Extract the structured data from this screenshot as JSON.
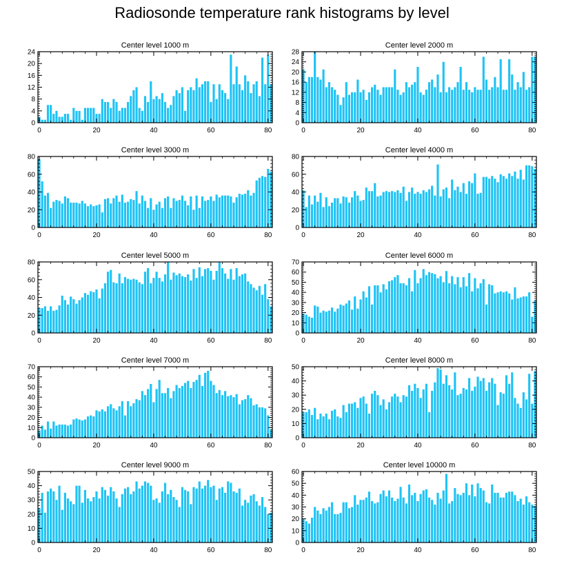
{
  "figure": {
    "title": "Radiosonde temperature rank histograms by level",
    "bar_color": "#1ec3f5"
  },
  "chart_data": [
    {
      "type": "bar",
      "title": "Center level 1000 m",
      "xticks": [
        0,
        20,
        40,
        60,
        80
      ],
      "yticks": [
        0,
        4,
        8,
        12,
        16,
        20,
        24
      ],
      "xlim": [
        -0.5,
        81.5
      ],
      "ylim": [
        0,
        24
      ],
      "values": [
        2,
        1,
        1,
        6,
        6,
        3,
        4,
        2,
        2,
        3,
        3,
        1,
        5,
        4,
        4,
        1,
        5,
        5,
        5,
        5,
        3,
        3,
        8,
        7,
        7,
        5,
        8,
        7,
        4,
        5,
        5,
        7,
        9,
        11,
        12,
        5,
        4,
        9,
        7,
        14,
        8,
        9,
        8,
        10,
        7,
        5,
        6,
        9,
        11,
        10,
        12,
        4,
        11,
        12,
        11,
        15,
        12,
        13,
        14,
        14,
        7,
        13,
        8,
        13,
        11,
        10,
        8,
        23,
        13,
        19,
        13,
        11,
        16,
        14,
        10,
        13,
        14,
        9,
        22,
        13,
        23,
        13
      ]
    },
    {
      "type": "bar",
      "title": "Center level 2000 m",
      "xticks": [
        0,
        20,
        40,
        60,
        80
      ],
      "yticks": [
        0,
        4,
        8,
        12,
        16,
        20,
        24,
        28
      ],
      "xlim": [
        -0.5,
        81.5
      ],
      "ylim": [
        0,
        28
      ],
      "values": [
        21,
        16,
        18,
        18,
        28,
        18,
        17,
        21,
        14,
        16,
        14,
        13,
        11,
        7,
        10,
        16,
        11,
        12,
        12,
        17,
        12,
        13,
        9,
        12,
        14,
        15,
        13,
        11,
        14,
        14,
        14,
        14,
        21,
        13,
        11,
        12,
        16,
        14,
        15,
        16,
        22,
        12,
        11,
        13,
        16,
        17,
        14,
        19,
        12,
        24,
        12,
        14,
        13,
        14,
        16,
        22,
        13,
        16,
        13,
        12,
        14,
        13,
        13,
        26,
        17,
        13,
        14,
        18,
        14,
        25,
        13,
        13,
        25,
        19,
        13,
        16,
        14,
        20,
        13,
        14,
        26,
        26
      ]
    },
    {
      "type": "bar",
      "title": "Center level 3000 m",
      "xticks": [
        0,
        20,
        40,
        60,
        80
      ],
      "yticks": [
        0,
        20,
        40,
        60,
        80
      ],
      "xlim": [
        -0.5,
        81.5
      ],
      "ylim": [
        0,
        80
      ],
      "values": [
        77,
        52,
        36,
        39,
        22,
        29,
        31,
        30,
        27,
        35,
        33,
        28,
        28,
        28,
        27,
        30,
        27,
        24,
        26,
        24,
        25,
        26,
        17,
        32,
        33,
        27,
        33,
        36,
        29,
        37,
        28,
        29,
        32,
        31,
        41,
        27,
        36,
        30,
        22,
        33,
        20,
        26,
        29,
        22,
        33,
        35,
        22,
        33,
        30,
        31,
        36,
        30,
        25,
        35,
        20,
        36,
        22,
        35,
        30,
        31,
        35,
        30,
        37,
        34,
        36,
        36,
        36,
        35,
        28,
        34,
        38,
        37,
        38,
        42,
        36,
        39,
        53,
        56,
        58,
        57,
        66,
        63
      ]
    },
    {
      "type": "bar",
      "title": "Center level 4000 m",
      "xticks": [
        0,
        20,
        40,
        60,
        80
      ],
      "yticks": [
        0,
        20,
        40,
        60,
        80
      ],
      "xlim": [
        -0.5,
        81.5
      ],
      "ylim": [
        0,
        80
      ],
      "values": [
        42,
        23,
        36,
        26,
        36,
        29,
        39,
        23,
        34,
        24,
        28,
        33,
        33,
        27,
        35,
        34,
        28,
        34,
        41,
        36,
        30,
        31,
        45,
        41,
        41,
        50,
        35,
        36,
        40,
        41,
        40,
        41,
        40,
        42,
        39,
        46,
        30,
        40,
        45,
        38,
        40,
        38,
        42,
        40,
        43,
        47,
        36,
        71,
        35,
        43,
        45,
        33,
        54,
        42,
        46,
        40,
        50,
        38,
        52,
        50,
        61,
        38,
        39,
        57,
        57,
        55,
        58,
        55,
        51,
        60,
        58,
        55,
        61,
        58,
        63,
        55,
        65,
        54,
        70,
        70,
        69,
        66
      ]
    },
    {
      "type": "bar",
      "title": "Center level 5000 m",
      "xticks": [
        0,
        20,
        40,
        60,
        80
      ],
      "yticks": [
        0,
        20,
        40,
        60,
        80
      ],
      "xlim": [
        -0.5,
        81.5
      ],
      "ylim": [
        0,
        80
      ],
      "values": [
        28,
        28,
        30,
        25,
        30,
        25,
        26,
        31,
        42,
        37,
        32,
        41,
        38,
        33,
        37,
        40,
        45,
        43,
        47,
        46,
        49,
        39,
        50,
        56,
        69,
        71,
        57,
        56,
        67,
        56,
        63,
        61,
        60,
        61,
        60,
        57,
        55,
        69,
        73,
        56,
        62,
        69,
        62,
        58,
        66,
        83,
        60,
        68,
        65,
        67,
        64,
        63,
        66,
        59,
        72,
        62,
        74,
        64,
        72,
        73,
        70,
        60,
        70,
        80,
        73,
        67,
        61,
        72,
        60,
        73,
        64,
        66,
        67,
        58,
        55,
        51,
        48,
        53,
        43,
        55,
        38,
        30
      ]
    },
    {
      "type": "bar",
      "title": "Center level 6000 m",
      "xticks": [
        0,
        20,
        40,
        60,
        80
      ],
      "yticks": [
        0,
        10,
        20,
        30,
        40,
        50,
        60,
        70
      ],
      "xlim": [
        -0.5,
        81.5
      ],
      "ylim": [
        0,
        70
      ],
      "values": [
        19,
        18,
        16,
        15,
        27,
        26,
        20,
        22,
        21,
        22,
        25,
        21,
        24,
        28,
        27,
        29,
        32,
        23,
        36,
        24,
        33,
        41,
        35,
        46,
        28,
        47,
        47,
        40,
        48,
        43,
        51,
        52,
        55,
        57,
        49,
        49,
        47,
        54,
        41,
        62,
        49,
        54,
        63,
        57,
        60,
        59,
        58,
        54,
        56,
        50,
        61,
        49,
        56,
        48,
        55,
        45,
        55,
        46,
        59,
        41,
        54,
        44,
        49,
        53,
        28,
        48,
        47,
        39,
        40,
        41,
        40,
        41,
        39,
        33,
        45,
        34,
        35,
        36,
        36,
        40,
        16,
        32
      ]
    },
    {
      "type": "bar",
      "title": "Center level 7000 m",
      "xticks": [
        0,
        20,
        40,
        60,
        80
      ],
      "yticks": [
        0,
        10,
        20,
        30,
        40,
        50,
        60,
        70
      ],
      "xlim": [
        -0.5,
        81.5
      ],
      "ylim": [
        0,
        70
      ],
      "values": [
        7,
        12,
        8,
        16,
        9,
        16,
        12,
        13,
        13,
        13,
        12,
        13,
        18,
        19,
        18,
        17,
        18,
        21,
        22,
        21,
        27,
        26,
        28,
        26,
        31,
        33,
        29,
        27,
        31,
        36,
        22,
        36,
        31,
        34,
        38,
        37,
        46,
        42,
        48,
        53,
        35,
        48,
        57,
        44,
        44,
        49,
        39,
        46,
        52,
        49,
        51,
        54,
        56,
        49,
        55,
        57,
        62,
        51,
        64,
        66,
        56,
        52,
        44,
        47,
        42,
        46,
        41,
        42,
        40,
        43,
        33,
        37,
        38,
        42,
        39,
        32,
        33,
        30,
        30,
        29,
        22,
        8
      ]
    },
    {
      "type": "bar",
      "title": "Center level 8000 m",
      "xticks": [
        0,
        20,
        40,
        60,
        80
      ],
      "yticks": [
        0,
        10,
        20,
        30,
        40,
        50
      ],
      "xlim": [
        -0.5,
        81.5
      ],
      "ylim": [
        0,
        50
      ],
      "values": [
        18,
        18,
        20,
        16,
        21,
        13,
        17,
        15,
        17,
        13,
        19,
        20,
        15,
        14,
        23,
        18,
        24,
        24,
        25,
        21,
        28,
        29,
        24,
        17,
        31,
        33,
        30,
        23,
        27,
        20,
        25,
        29,
        31,
        29,
        25,
        30,
        29,
        37,
        33,
        38,
        35,
        28,
        34,
        38,
        18,
        33,
        39,
        49,
        48,
        38,
        44,
        37,
        34,
        46,
        30,
        31,
        35,
        34,
        42,
        33,
        36,
        43,
        40,
        42,
        33,
        39,
        42,
        38,
        23,
        32,
        31,
        44,
        38,
        46,
        28,
        24,
        21,
        32,
        27,
        45,
        24,
        47
      ]
    },
    {
      "type": "bar",
      "title": "Center level 9000 m",
      "xticks": [
        0,
        20,
        40,
        60,
        80
      ],
      "yticks": [
        0,
        10,
        20,
        30,
        40,
        50
      ],
      "xlim": [
        -0.5,
        81.5
      ],
      "ylim": [
        0,
        50
      ],
      "values": [
        24,
        35,
        21,
        36,
        38,
        36,
        30,
        40,
        23,
        35,
        31,
        29,
        27,
        40,
        40,
        28,
        37,
        31,
        29,
        32,
        36,
        31,
        39,
        37,
        33,
        39,
        36,
        31,
        25,
        34,
        38,
        39,
        34,
        36,
        43,
        38,
        40,
        43,
        42,
        40,
        30,
        31,
        28,
        36,
        42,
        34,
        37,
        32,
        30,
        25,
        39,
        37,
        36,
        27,
        39,
        38,
        43,
        38,
        40,
        44,
        39,
        40,
        30,
        38,
        39,
        35,
        43,
        42,
        36,
        35,
        38,
        26,
        30,
        28,
        33,
        34,
        29,
        26,
        32,
        25,
        20,
        21
      ]
    },
    {
      "type": "bar",
      "title": "Center level 10000 m",
      "xticks": [
        0,
        20,
        40,
        60,
        80
      ],
      "yticks": [
        0,
        10,
        20,
        30,
        40,
        50,
        60
      ],
      "xlim": [
        -0.5,
        81.5
      ],
      "ylim": [
        0,
        60
      ],
      "values": [
        20,
        18,
        16,
        21,
        30,
        27,
        24,
        29,
        27,
        30,
        34,
        24,
        24,
        25,
        34,
        34,
        29,
        30,
        40,
        32,
        36,
        36,
        38,
        43,
        35,
        33,
        34,
        41,
        44,
        39,
        44,
        38,
        35,
        37,
        47,
        38,
        33,
        49,
        40,
        42,
        35,
        41,
        44,
        45,
        38,
        36,
        32,
        42,
        37,
        44,
        58,
        33,
        35,
        46,
        41,
        40,
        42,
        50,
        40,
        49,
        39,
        50,
        46,
        44,
        34,
        33,
        49,
        42,
        42,
        38,
        38,
        42,
        43,
        43,
        40,
        35,
        37,
        32,
        39,
        34,
        32,
        31
      ]
    }
  ]
}
